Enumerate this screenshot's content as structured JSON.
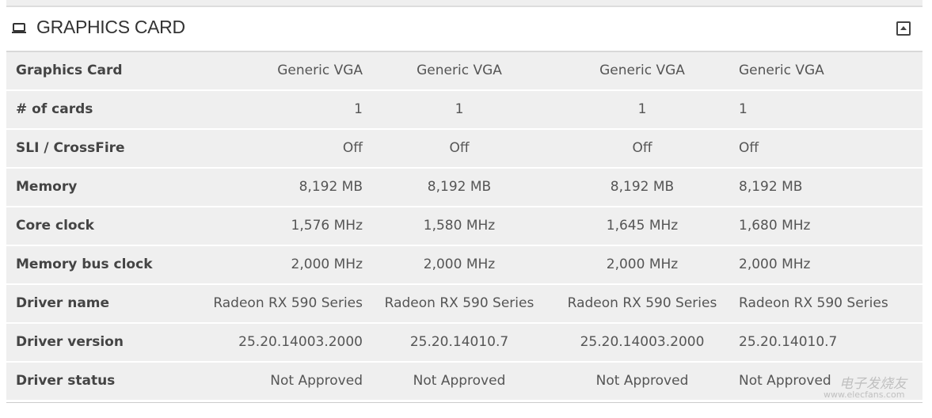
{
  "section": {
    "title": "GRAPHICS CARD",
    "icon": "monitor-icon",
    "collapse_icon": "collapse-up-icon"
  },
  "rows": [
    {
      "label": "Graphics Card",
      "values": [
        "Generic VGA",
        "Generic VGA",
        "Generic VGA",
        "Generic VGA"
      ]
    },
    {
      "label": "# of cards",
      "values": [
        "1",
        "1",
        "1",
        "1"
      ]
    },
    {
      "label": "SLI / CrossFire",
      "values": [
        "Off",
        "Off",
        "Off",
        "Off"
      ]
    },
    {
      "label": "Memory",
      "values": [
        "8,192 MB",
        "8,192 MB",
        "8,192 MB",
        "8,192 MB"
      ]
    },
    {
      "label": "Core clock",
      "values": [
        "1,576 MHz",
        "1,580 MHz",
        "1,645 MHz",
        "1,680 MHz"
      ]
    },
    {
      "label": "Memory bus clock",
      "values": [
        "2,000 MHz",
        "2,000 MHz",
        "2,000 MHz",
        "2,000 MHz"
      ]
    },
    {
      "label": "Driver name",
      "values": [
        "Radeon RX 590 Series",
        "Radeon RX 590 Series",
        "Radeon RX 590 Series",
        "Radeon RX 590 Series"
      ]
    },
    {
      "label": "Driver version",
      "values": [
        "25.20.14003.2000",
        "25.20.14010.7",
        "25.20.14003.2000",
        "25.20.14010.7"
      ]
    },
    {
      "label": "Driver status",
      "values": [
        "Not Approved",
        "Not Approved",
        "Not Approved",
        "Not Approved"
      ]
    }
  ],
  "watermark": {
    "cn": "电子发烧友",
    "url": "www.elecfans.com"
  }
}
